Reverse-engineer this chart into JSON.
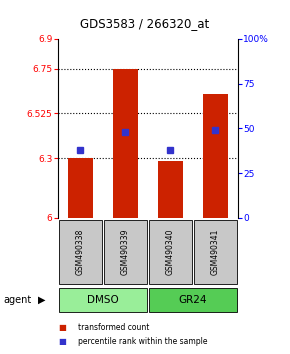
{
  "title": "GDS3583 / 266320_at",
  "samples": [
    "GSM490338",
    "GSM490339",
    "GSM490340",
    "GSM490341"
  ],
  "bar_values": [
    6.3,
    6.75,
    6.285,
    6.625
  ],
  "percentile_values": [
    6.34,
    6.43,
    6.34,
    6.44
  ],
  "ymin": 6.0,
  "ymax": 6.9,
  "y_ticks_left": [
    6.0,
    6.3,
    6.525,
    6.75,
    6.9
  ],
  "y_ticks_left_labels": [
    "6",
    "6.3",
    "6.525",
    "6.75",
    "6.9"
  ],
  "y_ticks_right": [
    0,
    25,
    50,
    75,
    100
  ],
  "y_ticks_right_labels": [
    "0",
    "25",
    "50",
    "75",
    "100%"
  ],
  "dotted_lines": [
    6.75,
    6.525,
    6.3
  ],
  "bar_color": "#CC2200",
  "percentile_color": "#3333CC",
  "group1_color": "#99EE99",
  "group2_color": "#55CC55",
  "bar_width": 0.55,
  "sample_box_color": "#C8C8C8",
  "agent_label": "agent"
}
